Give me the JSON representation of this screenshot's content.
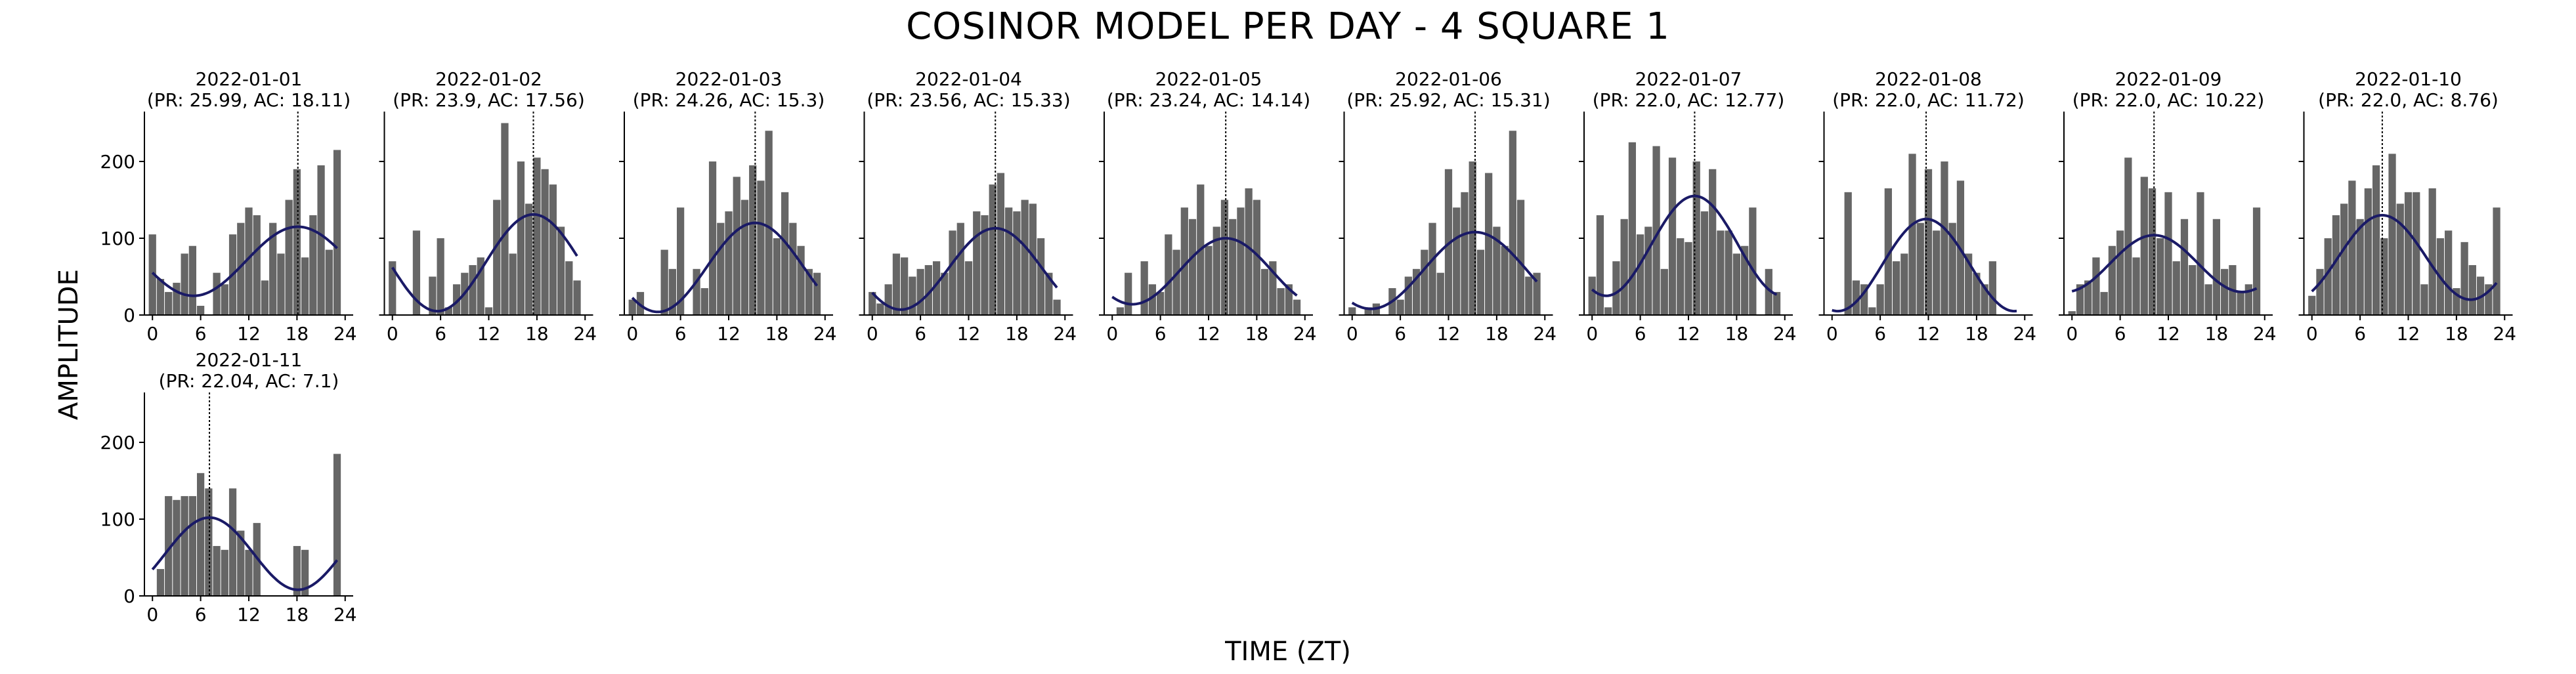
{
  "figure": {
    "title": "COSINOR MODEL PER DAY - 4 SQUARE 1",
    "xlabel": "TIME (ZT)",
    "ylabel": "AMPLITUDE"
  },
  "colors": {
    "bar": "#666666",
    "fit": "#1a1a66",
    "axis": "#000000",
    "acrophase_line": "#000000"
  },
  "chart_data": [
    {
      "type": "bar",
      "title": "2022-01-01",
      "subtitle": "(PR: 25.99, AC: 18.11)",
      "xticks": [
        0,
        6,
        12,
        18,
        24
      ],
      "yticks": [
        0,
        100,
        200
      ],
      "xlim": [
        -1,
        25
      ],
      "ylim": [
        0,
        265
      ],
      "acrophase": 18.11,
      "fit": {
        "mesor": 70,
        "amplitude": 45,
        "period": 25.99,
        "acrophase": 18.11
      },
      "x": [
        0,
        1,
        2,
        3,
        4,
        5,
        6,
        7,
        8,
        9,
        10,
        11,
        12,
        13,
        14,
        15,
        16,
        17,
        18,
        19,
        20,
        21,
        22,
        23
      ],
      "values": [
        105,
        47,
        30,
        42,
        80,
        90,
        12,
        0,
        55,
        40,
        105,
        120,
        140,
        130,
        45,
        120,
        80,
        150,
        190,
        75,
        130,
        195,
        85,
        215
      ]
    },
    {
      "type": "bar",
      "title": "2022-01-02",
      "subtitle": "(PR: 23.9, AC: 17.56)",
      "xticks": [
        0,
        6,
        12,
        18,
        24
      ],
      "yticks": [
        0,
        100,
        200
      ],
      "xlim": [
        -1,
        25
      ],
      "ylim": [
        0,
        265
      ],
      "acrophase": 17.56,
      "fit": {
        "mesor": 68,
        "amplitude": 63,
        "period": 23.9,
        "acrophase": 17.56
      },
      "x": [
        0,
        1,
        2,
        3,
        4,
        5,
        6,
        7,
        8,
        9,
        10,
        11,
        12,
        13,
        14,
        15,
        16,
        17,
        18,
        19,
        20,
        21,
        22,
        23
      ],
      "values": [
        70,
        0,
        0,
        110,
        0,
        50,
        100,
        10,
        40,
        55,
        65,
        75,
        10,
        150,
        250,
        80,
        200,
        145,
        205,
        190,
        170,
        115,
        70,
        45
      ]
    },
    {
      "type": "bar",
      "title": "2022-01-03",
      "subtitle": "(PR: 24.26, AC: 15.3)",
      "xticks": [
        0,
        6,
        12,
        18,
        24
      ],
      "yticks": [
        0,
        100,
        200
      ],
      "xlim": [
        -1,
        25
      ],
      "ylim": [
        0,
        265
      ],
      "acrophase": 15.3,
      "fit": {
        "mesor": 62,
        "amplitude": 58,
        "period": 24.26,
        "acrophase": 15.3
      },
      "x": [
        0,
        1,
        2,
        3,
        4,
        5,
        6,
        7,
        8,
        9,
        10,
        11,
        12,
        13,
        14,
        15,
        16,
        17,
        18,
        19,
        20,
        21,
        22,
        23
      ],
      "values": [
        20,
        30,
        0,
        0,
        85,
        60,
        140,
        0,
        60,
        35,
        200,
        120,
        135,
        180,
        150,
        195,
        175,
        240,
        100,
        160,
        120,
        90,
        60,
        55
      ]
    },
    {
      "type": "bar",
      "title": "2022-01-04",
      "subtitle": "(PR: 23.56, AC: 15.33)",
      "xticks": [
        0,
        6,
        12,
        18,
        24
      ],
      "yticks": [
        0,
        100,
        200
      ],
      "xlim": [
        -1,
        25
      ],
      "ylim": [
        0,
        265
      ],
      "acrophase": 15.33,
      "fit": {
        "mesor": 60,
        "amplitude": 53,
        "period": 23.56,
        "acrophase": 15.33
      },
      "x": [
        0,
        1,
        2,
        3,
        4,
        5,
        6,
        7,
        8,
        9,
        10,
        11,
        12,
        13,
        14,
        15,
        16,
        17,
        18,
        19,
        20,
        21,
        22,
        23
      ],
      "values": [
        30,
        15,
        40,
        80,
        75,
        50,
        60,
        65,
        70,
        55,
        110,
        120,
        70,
        135,
        130,
        170,
        185,
        140,
        135,
        150,
        145,
        100,
        55,
        20
      ]
    },
    {
      "type": "bar",
      "title": "2022-01-05",
      "subtitle": "(PR: 23.24, AC: 14.14)",
      "xticks": [
        0,
        6,
        12,
        18,
        24
      ],
      "yticks": [
        0,
        100,
        200
      ],
      "xlim": [
        -1,
        25
      ],
      "ylim": [
        0,
        265
      ],
      "acrophase": 14.14,
      "fit": {
        "mesor": 57,
        "amplitude": 43,
        "period": 23.24,
        "acrophase": 14.14
      },
      "x": [
        0,
        1,
        2,
        3,
        4,
        5,
        6,
        7,
        8,
        9,
        10,
        11,
        12,
        13,
        14,
        15,
        16,
        17,
        18,
        19,
        20,
        21,
        22,
        23
      ],
      "values": [
        0,
        10,
        55,
        0,
        70,
        40,
        30,
        105,
        85,
        140,
        125,
        170,
        90,
        115,
        150,
        125,
        140,
        165,
        150,
        60,
        70,
        35,
        40,
        20
      ]
    },
    {
      "type": "bar",
      "title": "2022-01-06",
      "subtitle": "(PR: 25.92, AC: 15.31)",
      "xticks": [
        0,
        6,
        12,
        18,
        24
      ],
      "yticks": [
        0,
        100,
        200
      ],
      "xlim": [
        -1,
        25
      ],
      "ylim": [
        0,
        265
      ],
      "acrophase": 15.31,
      "fit": {
        "mesor": 58,
        "amplitude": 50,
        "period": 25.92,
        "acrophase": 15.31
      },
      "x": [
        0,
        1,
        2,
        3,
        4,
        5,
        6,
        7,
        8,
        9,
        10,
        11,
        12,
        13,
        14,
        15,
        16,
        17,
        18,
        19,
        20,
        21,
        22,
        23
      ],
      "values": [
        10,
        0,
        10,
        15,
        0,
        35,
        20,
        50,
        60,
        85,
        120,
        55,
        190,
        140,
        160,
        200,
        85,
        185,
        115,
        90,
        240,
        150,
        50,
        55
      ]
    },
    {
      "type": "bar",
      "title": "2022-01-07",
      "subtitle": "(PR: 22.0, AC: 12.77)",
      "xticks": [
        0,
        6,
        12,
        18,
        24
      ],
      "yticks": [
        0,
        100,
        200
      ],
      "xlim": [
        -1,
        25
      ],
      "ylim": [
        0,
        265
      ],
      "acrophase": 12.77,
      "fit": {
        "mesor": 90,
        "amplitude": 65,
        "period": 22.0,
        "acrophase": 12.77
      },
      "x": [
        0,
        1,
        2,
        3,
        4,
        5,
        6,
        7,
        8,
        9,
        10,
        11,
        12,
        13,
        14,
        15,
        16,
        17,
        18,
        19,
        20,
        21,
        22,
        23
      ],
      "values": [
        50,
        130,
        10,
        70,
        125,
        225,
        105,
        115,
        220,
        60,
        205,
        100,
        95,
        200,
        135,
        190,
        110,
        110,
        80,
        90,
        140,
        0,
        60,
        30
      ]
    },
    {
      "type": "bar",
      "title": "2022-01-08",
      "subtitle": "(PR: 22.0, AC: 11.72)",
      "xticks": [
        0,
        6,
        12,
        18,
        24
      ],
      "yticks": [
        0,
        100,
        200
      ],
      "xlim": [
        -1,
        25
      ],
      "ylim": [
        0,
        265
      ],
      "acrophase": 11.72,
      "fit": {
        "mesor": 65,
        "amplitude": 60,
        "period": 22.0,
        "acrophase": 11.72
      },
      "x": [
        0,
        1,
        2,
        3,
        4,
        5,
        6,
        7,
        8,
        9,
        10,
        11,
        12,
        13,
        14,
        15,
        16,
        17,
        18,
        19,
        20,
        21,
        22,
        23
      ],
      "values": [
        0,
        0,
        160,
        45,
        40,
        10,
        40,
        165,
        70,
        80,
        210,
        120,
        190,
        110,
        200,
        120,
        175,
        80,
        55,
        40,
        70,
        0,
        0,
        0
      ]
    },
    {
      "type": "bar",
      "title": "2022-01-09",
      "subtitle": "(PR: 22.0, AC: 10.22)",
      "xticks": [
        0,
        6,
        12,
        18,
        24
      ],
      "yticks": [
        0,
        100,
        200
      ],
      "xlim": [
        -1,
        25
      ],
      "ylim": [
        0,
        265
      ],
      "acrophase": 10.22,
      "fit": {
        "mesor": 67,
        "amplitude": 37,
        "period": 22.0,
        "acrophase": 10.22
      },
      "x": [
        0,
        1,
        2,
        3,
        4,
        5,
        6,
        7,
        8,
        9,
        10,
        11,
        12,
        13,
        14,
        15,
        16,
        17,
        18,
        19,
        20,
        21,
        22,
        23
      ],
      "values": [
        5,
        40,
        45,
        75,
        30,
        90,
        110,
        205,
        75,
        180,
        165,
        100,
        160,
        70,
        125,
        65,
        160,
        40,
        125,
        60,
        65,
        30,
        40,
        140
      ]
    },
    {
      "type": "bar",
      "title": "2022-01-10",
      "subtitle": "(PR: 22.0, AC: 8.76)",
      "xticks": [
        0,
        6,
        12,
        18,
        24
      ],
      "yticks": [
        0,
        100,
        200
      ],
      "xlim": [
        -1,
        25
      ],
      "ylim": [
        0,
        265
      ],
      "acrophase": 8.76,
      "fit": {
        "mesor": 75,
        "amplitude": 55,
        "period": 22.0,
        "acrophase": 8.76
      },
      "x": [
        0,
        1,
        2,
        3,
        4,
        5,
        6,
        7,
        8,
        9,
        10,
        11,
        12,
        13,
        14,
        15,
        16,
        17,
        18,
        19,
        20,
        21,
        22,
        23
      ],
      "values": [
        25,
        60,
        100,
        130,
        145,
        175,
        125,
        165,
        195,
        100,
        210,
        145,
        160,
        160,
        40,
        165,
        100,
        110,
        35,
        95,
        65,
        50,
        40,
        140
      ]
    },
    {
      "type": "bar",
      "title": "2022-01-11",
      "subtitle": "(PR: 22.04, AC: 7.1)",
      "xticks": [
        0,
        6,
        12,
        18,
        24
      ],
      "yticks": [
        0,
        100,
        200
      ],
      "xlim": [
        -1,
        25
      ],
      "ylim": [
        0,
        265
      ],
      "acrophase": 7.1,
      "fit": {
        "mesor": 55,
        "amplitude": 47,
        "period": 22.04,
        "acrophase": 7.1
      },
      "x": [
        0,
        1,
        2,
        3,
        4,
        5,
        6,
        7,
        8,
        9,
        10,
        11,
        12,
        13,
        14,
        15,
        16,
        17,
        18,
        19,
        20,
        21,
        22,
        23
      ],
      "values": [
        0,
        35,
        130,
        125,
        130,
        130,
        160,
        140,
        65,
        60,
        140,
        85,
        60,
        95,
        0,
        0,
        0,
        0,
        65,
        60,
        0,
        0,
        0,
        185
      ]
    }
  ]
}
